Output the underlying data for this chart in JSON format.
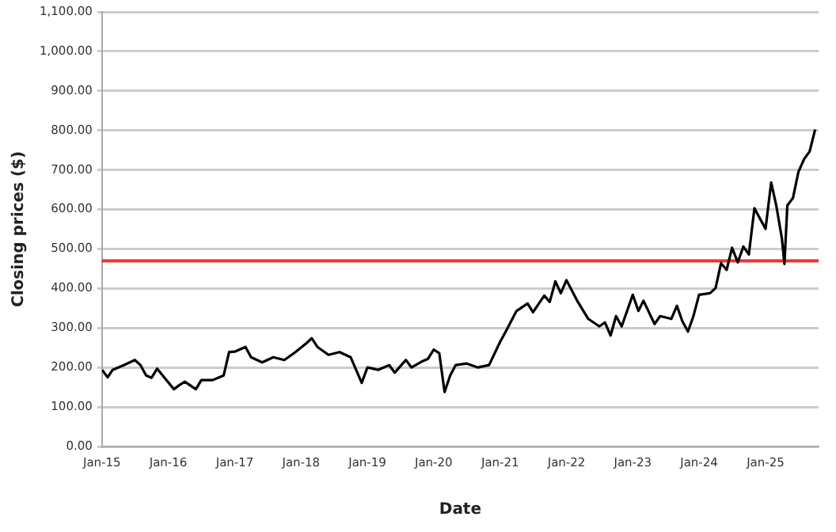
{
  "chart_data": {
    "type": "line",
    "xlabel": "Date",
    "ylabel": "Closing prices ($)",
    "x": [
      "2015-01-02",
      "2015-02",
      "2015-03",
      "2015-05",
      "2015-07",
      "2015-08",
      "2015-09",
      "2015-10",
      "2015-11",
      "2015-12",
      "2016-02",
      "2016-03",
      "2016-04",
      "2016-06",
      "2016-07",
      "2016-09",
      "2016-11",
      "2016-12",
      "2017-01",
      "2017-03",
      "2017-04",
      "2017-06",
      "2017-08",
      "2017-10",
      "2017-12",
      "2018-02",
      "2018-03",
      "2018-04",
      "2018-06",
      "2018-08",
      "2018-10",
      "2018-12",
      "2019-01",
      "2019-03",
      "2019-05",
      "2019-06",
      "2019-08",
      "2019-09",
      "2019-11",
      "2019-12",
      "2020-01",
      "2020-02",
      "2020-03",
      "2020-04",
      "2020-05",
      "2020-07",
      "2020-09",
      "2020-11",
      "2021-01",
      "2021-02",
      "2021-04",
      "2021-06",
      "2021-07",
      "2021-09",
      "2021-10",
      "2021-11",
      "2021-12",
      "2022-01",
      "2022-03",
      "2022-05",
      "2022-07",
      "2022-08",
      "2022-09",
      "2022-10",
      "2022-11",
      "2023-01",
      "2023-02",
      "2023-03",
      "2023-05",
      "2023-06",
      "2023-08",
      "2023-09",
      "2023-10",
      "2023-11",
      "2023-12",
      "2024-01",
      "2024-03",
      "2024-04",
      "2024-05",
      "2024-06",
      "2024-07",
      "2024-08",
      "2024-09",
      "2024-10",
      "2024-11",
      "2024-12",
      "2025-01",
      "2025-02",
      "2025-03",
      "2025-04",
      "2025-04-15",
      "2025-05",
      "2025-06",
      "2025-07",
      "2025-08",
      "2025-09",
      "2025-10"
    ],
    "series": [
      {
        "color": "#000000",
        "values": [
          194,
          175,
          194,
          206,
          219,
          206,
          180,
          174,
          197,
          180,
          145,
          155,
          164,
          145,
          168,
          168,
          180,
          239,
          240,
          252,
          226,
          213,
          226,
          219,
          239,
          262,
          274,
          252,
          232,
          239,
          226,
          161,
          200,
          194,
          206,
          187,
          219,
          200,
          216,
          222,
          245,
          236,
          138,
          180,
          206,
          210,
          200,
          206,
          265,
          291,
          343,
          362,
          340,
          382,
          366,
          418,
          388,
          421,
          369,
          323,
          304,
          314,
          281,
          330,
          304,
          384,
          343,
          369,
          310,
          330,
          323,
          356,
          317,
          291,
          330,
          384,
          388,
          401,
          464,
          447,
          503,
          466,
          506,
          486,
          603,
          577,
          551,
          668,
          610,
          527,
          462,
          610,
          629,
          695,
          727,
          747,
          802
        ]
      }
    ],
    "xlim": [
      "2015-01-01",
      "2025-10-20"
    ],
    "xticks": [
      {
        "value": "2015-01-01",
        "label": "Jan-15"
      },
      {
        "value": "2016-01-01",
        "label": "Jan-16"
      },
      {
        "value": "2017-01-01",
        "label": "Jan-17"
      },
      {
        "value": "2018-01-01",
        "label": "Jan-18"
      },
      {
        "value": "2019-01-01",
        "label": "Jan-19"
      },
      {
        "value": "2020-01-01",
        "label": "Jan-20"
      },
      {
        "value": "2021-01-01",
        "label": "Jan-21"
      },
      {
        "value": "2022-01-01",
        "label": "Jan-22"
      },
      {
        "value": "2023-01-01",
        "label": "Jan-23"
      },
      {
        "value": "2024-01-01",
        "label": "Jan-24"
      },
      {
        "value": "2025-01-01",
        "label": "Jan-25"
      }
    ],
    "ylim": [
      0,
      1100
    ],
    "yticks": [
      {
        "value": 0,
        "label": "0.00"
      },
      {
        "value": 100,
        "label": "100.00"
      },
      {
        "value": 200,
        "label": "200.00"
      },
      {
        "value": 300,
        "label": "300.00"
      },
      {
        "value": 400,
        "label": "400.00"
      },
      {
        "value": 500,
        "label": "500.00"
      },
      {
        "value": 600,
        "label": "600.00"
      },
      {
        "value": 700,
        "label": "700.00"
      },
      {
        "value": 800,
        "label": "800.00"
      },
      {
        "value": 900,
        "label": "900.00"
      },
      {
        "value": 1000,
        "label": "1,000.00"
      },
      {
        "value": 1100,
        "label": "1,100.00"
      }
    ],
    "ref_lines": [
      {
        "axis": "y",
        "value": 470,
        "color": "#e8332f"
      }
    ],
    "grid": "y",
    "legend": false,
    "marker": "none",
    "line_style": "solid"
  }
}
